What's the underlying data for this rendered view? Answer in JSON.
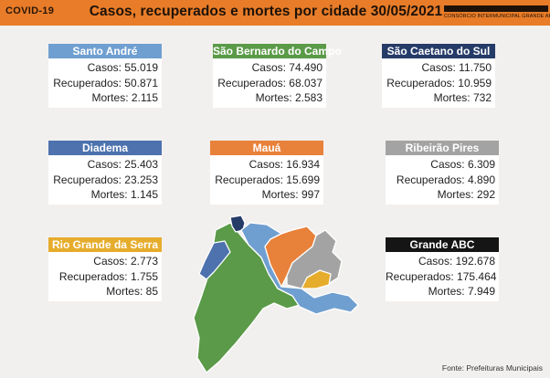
{
  "header": {
    "tag": "COVID-19",
    "title": "Casos, recuperados e mortes por cidade 30/05/2021",
    "org_text": "CONSÓRCIO INTERMUNICIPAL GRANDE ABC",
    "bg_color": "#e87c28"
  },
  "cities": [
    {
      "name": "Santo André",
      "color": "#6f9fd0",
      "casos": "Casos: 55.019",
      "recuperados": "Recuperados: 50.871",
      "mortes": "Mortes: 2.115"
    },
    {
      "name": "São Bernardo do Campo",
      "color": "#5a9a48",
      "casos": "Casos: 74.490",
      "recuperados": "Recuperados: 68.037",
      "mortes": "Mortes: 2.583"
    },
    {
      "name": "São Caetano do Sul",
      "color": "#253b68",
      "casos": "Casos: 11.750",
      "recuperados": "Recuperados: 10.959",
      "mortes": "Mortes: 732"
    },
    {
      "name": "Diadema",
      "color": "#4d72ae",
      "casos": "Casos: 25.403",
      "recuperados": "Recuperados: 23.253",
      "mortes": "Mortes: 1.145"
    },
    {
      "name": "Mauá",
      "color": "#e8813a",
      "casos": "Casos: 16.934",
      "recuperados": "Recuperados: 15.699",
      "mortes": "Mortes: 997"
    },
    {
      "name": "Ribeirão Pires",
      "color": "#a3a3a3",
      "casos": "Casos: 6.309",
      "recuperados": "Recuperados: 4.890",
      "mortes": "Mortes: 292"
    },
    {
      "name": "Rio Grande da Serra",
      "color": "#e6ac2c",
      "casos": "Casos: 2.773",
      "recuperados": "Recuperados: 1.755",
      "mortes": "Mortes: 85"
    },
    {
      "name": "Grande ABC",
      "color": "#151515",
      "casos": "Casos: 192.678",
      "recuperados": "Recuperados: 175.464",
      "mortes": "Mortes: 7.949"
    }
  ],
  "source": "Fonte: Prefeituras Municipais"
}
